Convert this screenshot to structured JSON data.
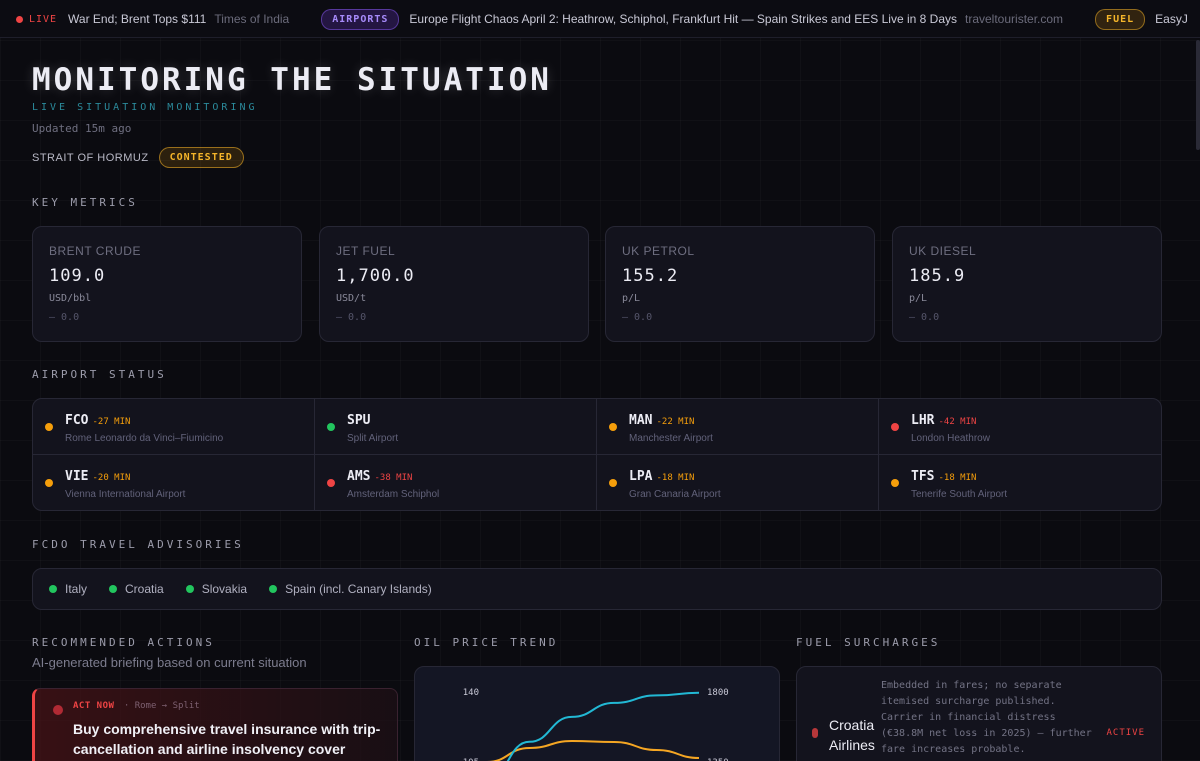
{
  "ticker": {
    "live_label": "LIVE",
    "items": [
      {
        "type": "headline",
        "text": "a War End; Brent Tops $111",
        "source": "Times of India"
      },
      {
        "type": "pill",
        "pill": "AIRPORTS",
        "pill_color": "airports",
        "text": "Europe Flight Chaos April 2: Heathrow, Schiphol, Frankfurt Hit — Spain Strikes and EES Live in 8 Days",
        "source": "traveltourister.com"
      },
      {
        "type": "pill",
        "pill": "FUEL",
        "pill_color": "fuel",
        "text": "EasyJ",
        "source": ""
      }
    ]
  },
  "header": {
    "title": "MONITORING THE SITUATION",
    "subtitle": "LIVE SITUATION MONITORING",
    "updated": "Updated 15m ago",
    "strait_label": "STRAIT OF HORMUZ",
    "strait_status": "CONTESTED"
  },
  "sections": {
    "key_metrics": "KEY METRICS",
    "airport_status": "AIRPORT STATUS",
    "advisories": "FCDO TRAVEL ADVISORIES",
    "actions": "RECOMMENDED ACTIONS",
    "oil_trend": "OIL PRICE TREND",
    "fuel_surcharges": "FUEL SURCHARGES"
  },
  "metrics": [
    {
      "label": "BRENT CRUDE",
      "value": "109.0",
      "unit": "USD/bbl",
      "change": "— 0.0"
    },
    {
      "label": "JET FUEL",
      "value": "1,700.0",
      "unit": "USD/t",
      "change": "— 0.0"
    },
    {
      "label": "UK PETROL",
      "value": "155.2",
      "unit": "p/L",
      "change": "— 0.0"
    },
    {
      "label": "UK DIESEL",
      "value": "185.9",
      "unit": "p/L",
      "change": "— 0.0"
    }
  ],
  "airports": [
    {
      "code": "FCO",
      "delay": "-27 MIN",
      "name": "Rome Leonardo da Vinci–Fiumicino",
      "status_color": "#f59e0b",
      "delay_color": "#f59e0b"
    },
    {
      "code": "SPU",
      "delay": "",
      "name": "Split Airport",
      "status_color": "#22c55e",
      "delay_color": "#22c55e"
    },
    {
      "code": "MAN",
      "delay": "-22 MIN",
      "name": "Manchester Airport",
      "status_color": "#f59e0b",
      "delay_color": "#f59e0b"
    },
    {
      "code": "LHR",
      "delay": "-42 MIN",
      "name": "London Heathrow",
      "status_color": "#ef4444",
      "delay_color": "#ef4444"
    },
    {
      "code": "VIE",
      "delay": "-20 MIN",
      "name": "Vienna International Airport",
      "status_color": "#f59e0b",
      "delay_color": "#f59e0b"
    },
    {
      "code": "AMS",
      "delay": "-38 MIN",
      "name": "Amsterdam Schiphol",
      "status_color": "#ef4444",
      "delay_color": "#ef4444"
    },
    {
      "code": "LPA",
      "delay": "-18 MIN",
      "name": "Gran Canaria Airport",
      "status_color": "#f59e0b",
      "delay_color": "#f59e0b"
    },
    {
      "code": "TFS",
      "delay": "-18 MIN",
      "name": "Tenerife South Airport",
      "status_color": "#f59e0b",
      "delay_color": "#f59e0b"
    }
  ],
  "advisories": [
    "Italy",
    "Croatia",
    "Slovakia",
    "Spain (incl. Canary Islands)"
  ],
  "actions": {
    "subtitle": "AI-generated briefing based on current situation",
    "items": [
      {
        "priority": "ACT NOW",
        "route": "· Rome → Split",
        "text": "Buy comprehensive travel insurance with trip-cancellation and airline insolvency cover"
      }
    ]
  },
  "chart_data": {
    "type": "line",
    "title": "",
    "y_left_ticks": [
      "140",
      "105"
    ],
    "y_right_ticks": [
      "1800",
      "1350"
    ],
    "y_left_lim": [
      70,
      140
    ],
    "y_right_lim": [
      900,
      1800
    ],
    "series": [
      {
        "axis": "left",
        "color": "#f5a623",
        "x": [
          0,
          1,
          2,
          3,
          4,
          5
        ],
        "values": [
          105,
          112,
          115.5,
          115,
          111,
          107
        ]
      },
      {
        "axis": "right",
        "color": "#22b8d4",
        "x": [
          0,
          1,
          2,
          3,
          4,
          5
        ],
        "values": [
          1240,
          1480,
          1640,
          1730,
          1778,
          1795
        ]
      }
    ]
  },
  "fuel_surcharges": [
    {
      "airline": "Croatia Airlines",
      "note": "Embedded in fares; no separate itemised surcharge published. Carrier in financial distress (€38.8M net loss in 2025) — further fare increases probable.",
      "status": "ACTIVE"
    }
  ],
  "colors": {
    "accent_teal": "#2b8a9b",
    "amber": "#f5b52a",
    "danger": "#ef4444",
    "ok": "#22c55e",
    "violet": "#a78bfa"
  }
}
